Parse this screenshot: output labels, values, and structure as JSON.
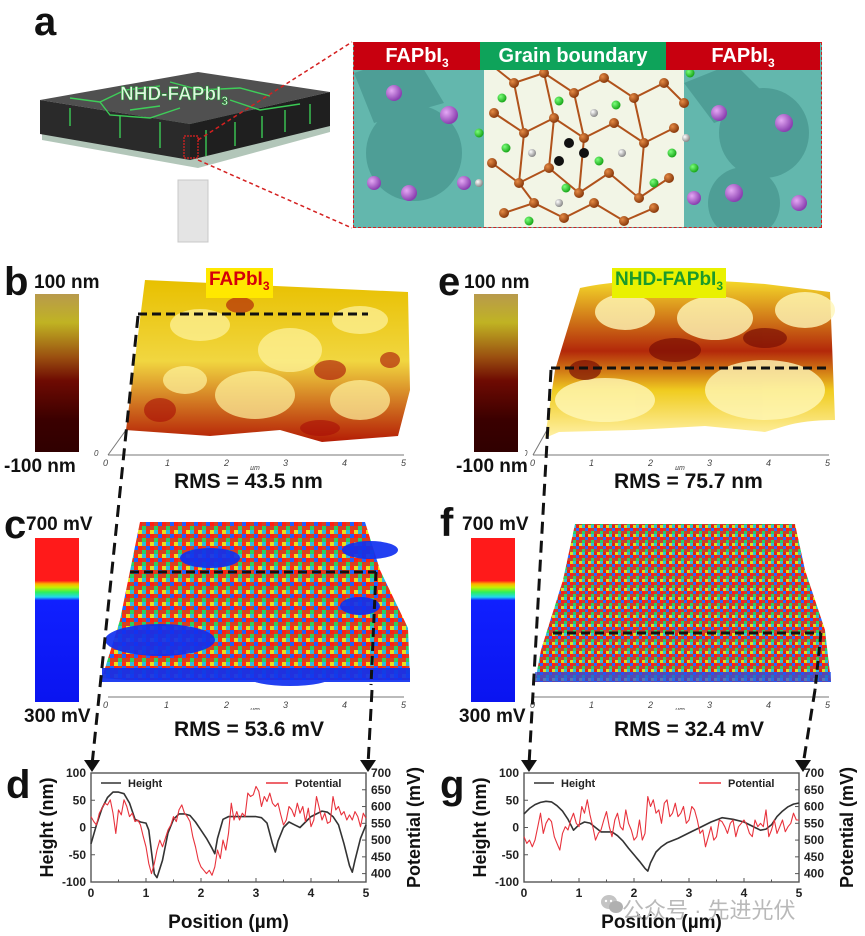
{
  "figure": {
    "panel_a": {
      "letter": "a",
      "film_label_main": "NHD-FAPbI",
      "film_label_sub": "3",
      "banners": [
        {
          "main": "FAPbI",
          "sub": "3",
          "color": "#c8000f"
        },
        {
          "main": "Grain boundary",
          "sub": "",
          "color": "#0ea35a"
        },
        {
          "main": "FAPbI",
          "sub": "3",
          "color": "#c8000f"
        }
      ]
    },
    "panel_b": {
      "letter": "b",
      "tag_main": "FAPbI",
      "tag_sub": "3",
      "tag_text_color": "#d4000a",
      "tag_bg": "#ffe800",
      "cb_top": "100 nm",
      "cb_bottom": "-100 nm",
      "axis_ticks": [
        "0",
        "1",
        "2",
        "3",
        "4",
        "5"
      ],
      "axis_unit": "µm",
      "z_tick": "0",
      "rms": "RMS = 43.5 nm"
    },
    "panel_e": {
      "letter": "e",
      "tag_main": "NHD-FAPbI",
      "tag_sub": "3",
      "tag_text_color": "#1b9a2a",
      "tag_bg": "#e9f100",
      "cb_top": "100 nm",
      "cb_bottom": "-100 nm",
      "axis_ticks": [
        "0",
        "1",
        "2",
        "3",
        "4",
        "5"
      ],
      "axis_unit": "µm",
      "z_tick": "0",
      "rms": "RMS = 75.7 nm"
    },
    "panel_c": {
      "letter": "c",
      "cb_top": "700 mV",
      "cb_bottom": "300 mV",
      "axis_ticks": [
        "0",
        "1",
        "2",
        "3",
        "4",
        "5"
      ],
      "axis_unit": "µm",
      "z_tick": "0",
      "rms": "RMS = 53.6 mV"
    },
    "panel_f": {
      "letter": "f",
      "cb_top": "700 mV",
      "cb_bottom": "300 mV",
      "axis_ticks": [
        "0",
        "1",
        "2",
        "3",
        "4",
        "5"
      ],
      "axis_unit": "µm",
      "z_tick": "0",
      "rms": "RMS = 32.4 mV"
    },
    "watermark": "公众号 · 先进光伏"
  },
  "chart_data": [
    {
      "id": "d",
      "type": "line",
      "letter": "d",
      "title": "",
      "xlabel": "Position  (µm)",
      "ylabel": "Height (nm)",
      "y2label": "Potential (mV)",
      "xlim": [
        0,
        5
      ],
      "ylim": [
        -100,
        100
      ],
      "y2lim": [
        375,
        700
      ],
      "xticks": [
        "0",
        "1",
        "2",
        "3",
        "4",
        "5"
      ],
      "yticks": [
        "100",
        "50",
        "0",
        "-50",
        "-100"
      ],
      "y2ticks": [
        "700",
        "650",
        "600",
        "550",
        "500",
        "450",
        "400"
      ],
      "legend": [
        "Height",
        "Potential"
      ],
      "grid": false,
      "series": [
        {
          "name": "Height",
          "axis": "left",
          "color": "#333333",
          "x": [
            0,
            0.1,
            0.2,
            0.3,
            0.4,
            0.5,
            0.6,
            0.7,
            0.8,
            0.9,
            1.0,
            1.05,
            1.1,
            1.15,
            1.2,
            1.3,
            1.4,
            1.5,
            1.6,
            1.7,
            1.8,
            1.9,
            2.0,
            2.1,
            2.2,
            2.25,
            2.3,
            2.4,
            2.5,
            2.6,
            2.8,
            3.0,
            3.1,
            3.2,
            3.3,
            3.35,
            3.4,
            3.5,
            3.6,
            3.7,
            3.8,
            3.9,
            4.0,
            4.1,
            4.2,
            4.3,
            4.4,
            4.5,
            4.6,
            4.7,
            4.75,
            4.8,
            4.9,
            5.0
          ],
          "y": [
            -30,
            5,
            35,
            55,
            65,
            65,
            62,
            45,
            15,
            10,
            8,
            -5,
            -45,
            -85,
            -92,
            -60,
            -10,
            15,
            25,
            25,
            22,
            10,
            -5,
            -20,
            -38,
            -48,
            -20,
            15,
            20,
            20,
            20,
            20,
            18,
            8,
            -30,
            -45,
            -25,
            0,
            10,
            5,
            0,
            10,
            20,
            25,
            30,
            28,
            20,
            5,
            -30,
            -70,
            -82,
            -60,
            -20,
            5
          ]
        },
        {
          "name": "Potential",
          "axis": "right",
          "color": "#e8323c",
          "x": [
            0,
            0.05,
            0.1,
            0.15,
            0.2,
            0.25,
            0.3,
            0.35,
            0.4,
            0.45,
            0.5,
            0.55,
            0.6,
            0.65,
            0.7,
            0.75,
            0.8,
            0.85,
            0.9,
            0.95,
            1.0,
            1.05,
            1.1,
            1.15,
            1.2,
            1.25,
            1.3,
            1.35,
            1.4,
            1.45,
            1.5,
            1.55,
            1.6,
            1.65,
            1.7,
            1.75,
            1.8,
            1.85,
            1.9,
            1.95,
            2.0,
            2.05,
            2.1,
            2.15,
            2.2,
            2.25,
            2.3,
            2.35,
            2.4,
            2.45,
            2.5,
            2.55,
            2.6,
            2.65,
            2.7,
            2.75,
            2.8,
            2.85,
            2.9,
            2.95,
            3.0,
            3.05,
            3.1,
            3.15,
            3.2,
            3.25,
            3.3,
            3.35,
            3.4,
            3.45,
            3.5,
            3.55,
            3.6,
            3.65,
            3.7,
            3.75,
            3.8,
            3.85,
            3.9,
            3.95,
            4.0,
            4.05,
            4.1,
            4.15,
            4.2,
            4.25,
            4.3,
            4.35,
            4.4,
            4.45,
            4.5,
            4.55,
            4.6,
            4.65,
            4.7,
            4.75,
            4.8,
            4.85,
            4.9,
            4.95,
            5.0
          ],
          "y": [
            570,
            555,
            545,
            580,
            595,
            610,
            605,
            620,
            580,
            520,
            590,
            575,
            620,
            600,
            570,
            580,
            555,
            560,
            545,
            510,
            480,
            430,
            400,
            430,
            470,
            500,
            480,
            505,
            530,
            545,
            570,
            555,
            590,
            605,
            580,
            570,
            555,
            510,
            480,
            440,
            420,
            410,
            400,
            410,
            395,
            420,
            470,
            445,
            500,
            470,
            520,
            610,
            560,
            585,
            560,
            580,
            570,
            640,
            630,
            635,
            660,
            645,
            600,
            630,
            615,
            640,
            610,
            600,
            610,
            575,
            545,
            560,
            600,
            590,
            570,
            610,
            580,
            600,
            555,
            595,
            540,
            560,
            630,
            595,
            560,
            580,
            550,
            555,
            630,
            590,
            600,
            575,
            585,
            560,
            575,
            560,
            585,
            570,
            540,
            580,
            565
          ]
        }
      ]
    },
    {
      "id": "g",
      "type": "line",
      "letter": "g",
      "title": "",
      "xlabel": "Position  (µm)",
      "ylabel": "Height (nm)",
      "y2label": "Potential (mV)",
      "xlim": [
        0,
        5
      ],
      "ylim": [
        -100,
        100
      ],
      "y2lim": [
        375,
        700
      ],
      "xticks": [
        "0",
        "1",
        "2",
        "3",
        "4",
        "5"
      ],
      "yticks": [
        "100",
        "50",
        "0",
        "-50",
        "-100"
      ],
      "y2ticks": [
        "700",
        "650",
        "600",
        "550",
        "500",
        "450",
        "400"
      ],
      "legend": [
        "Height",
        "Potential"
      ],
      "grid": false,
      "series": [
        {
          "name": "Height",
          "axis": "left",
          "color": "#333333",
          "x": [
            0,
            0.1,
            0.2,
            0.3,
            0.4,
            0.5,
            0.6,
            0.7,
            0.8,
            0.9,
            1.0,
            1.1,
            1.2,
            1.3,
            1.4,
            1.5,
            1.6,
            1.7,
            1.8,
            1.9,
            2.0,
            2.1,
            2.2,
            2.25,
            2.3,
            2.4,
            2.5,
            2.6,
            2.8,
            3.0,
            3.2,
            3.4,
            3.6,
            3.8,
            4.0,
            4.2,
            4.3,
            4.4,
            4.5,
            4.6,
            4.7,
            4.8,
            4.9,
            5.0
          ],
          "y": [
            25,
            35,
            42,
            46,
            48,
            47,
            40,
            30,
            15,
            -5,
            5,
            10,
            8,
            0,
            -8,
            -8,
            -8,
            -15,
            -25,
            -38,
            -50,
            -62,
            -75,
            -80,
            -65,
            -45,
            -35,
            -28,
            -20,
            -10,
            0,
            10,
            18,
            15,
            10,
            0,
            -5,
            -3,
            5,
            20,
            30,
            38,
            43,
            45
          ]
        },
        {
          "name": "Potential",
          "axis": "right",
          "color": "#e8323c",
          "x": [
            0,
            0.05,
            0.1,
            0.15,
            0.2,
            0.25,
            0.3,
            0.35,
            0.4,
            0.45,
            0.5,
            0.55,
            0.6,
            0.65,
            0.7,
            0.75,
            0.8,
            0.85,
            0.9,
            0.95,
            1.0,
            1.05,
            1.1,
            1.15,
            1.2,
            1.25,
            1.3,
            1.35,
            1.4,
            1.45,
            1.5,
            1.55,
            1.6,
            1.65,
            1.7,
            1.75,
            1.8,
            1.85,
            1.9,
            1.95,
            2.0,
            2.05,
            2.1,
            2.15,
            2.2,
            2.25,
            2.3,
            2.35,
            2.4,
            2.45,
            2.5,
            2.55,
            2.6,
            2.65,
            2.7,
            2.75,
            2.8,
            2.85,
            2.9,
            2.95,
            3.0,
            3.05,
            3.1,
            3.15,
            3.2,
            3.25,
            3.3,
            3.35,
            3.4,
            3.45,
            3.5,
            3.55,
            3.6,
            3.65,
            3.7,
            3.75,
            3.8,
            3.85,
            3.9,
            3.95,
            4.0,
            4.05,
            4.1,
            4.15,
            4.2,
            4.25,
            4.3,
            4.35,
            4.4,
            4.45,
            4.5,
            4.55,
            4.6,
            4.65,
            4.7,
            4.75,
            4.8,
            4.85,
            4.9,
            4.95,
            5.0
          ],
          "y": [
            510,
            490,
            500,
            480,
            500,
            540,
            580,
            520,
            550,
            565,
            555,
            510,
            490,
            470,
            520,
            540,
            530,
            560,
            580,
            550,
            540,
            600,
            580,
            620,
            575,
            540,
            500,
            520,
            530,
            560,
            585,
            540,
            510,
            560,
            580,
            540,
            530,
            590,
            550,
            530,
            500,
            510,
            560,
            500,
            520,
            630,
            600,
            620,
            580,
            590,
            550,
            610,
            620,
            570,
            580,
            610,
            570,
            580,
            600,
            550,
            560,
            600,
            590,
            560,
            520,
            530,
            480,
            510,
            540,
            500,
            510,
            560,
            555,
            540,
            520,
            550,
            560,
            510,
            540,
            550,
            560,
            545,
            520,
            510,
            560,
            540,
            550,
            540,
            590,
            510,
            530,
            560,
            520,
            540,
            560,
            525,
            540,
            550,
            580,
            560,
            560
          ]
        }
      ]
    }
  ]
}
